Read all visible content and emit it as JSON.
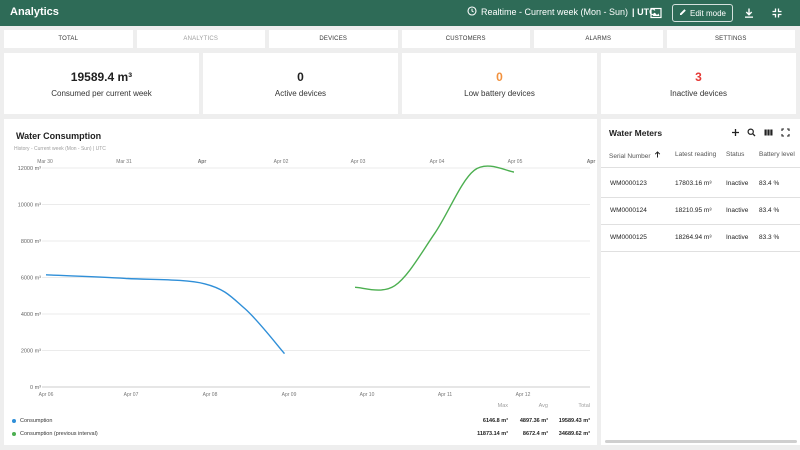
{
  "app": {
    "title": "Analytics"
  },
  "header": {
    "realtime_prefix": "Realtime - Current week (Mon - Sun)",
    "realtime_tz": "| UTC",
    "edit_label": "Edit mode",
    "icons": [
      "clock-icon",
      "image-icon",
      "pencil-icon",
      "download-icon",
      "fullscreen-exit-icon"
    ]
  },
  "tabs": [
    {
      "label": "TOTAL",
      "active": false
    },
    {
      "label": "ANALYTICS",
      "active": true
    },
    {
      "label": "DEVICES",
      "active": false
    },
    {
      "label": "CUSTOMERS",
      "active": false
    },
    {
      "label": "ALARMS",
      "active": false
    },
    {
      "label": "SETTINGS",
      "active": false
    }
  ],
  "cards": [
    {
      "value": "19589.4 m³",
      "label": "Consumed per current week",
      "color": "#212121"
    },
    {
      "value": "0",
      "label": "Active devices",
      "color": "#212121"
    },
    {
      "value": "0",
      "label": "Low battery devices",
      "color": "#f2913d"
    },
    {
      "value": "3",
      "label": "Inactive devices",
      "color": "#e53935"
    }
  ],
  "chart": {
    "title": "Water Consumption",
    "subtitle": "History - Current week (Mon - Sun) | UTC",
    "legend_headers": {
      "max": "Max",
      "avg": "Avg",
      "total": "Total"
    },
    "legend": [
      {
        "name": "Consumption",
        "color": "#2f8fd8",
        "max": "6146.8 m³",
        "avg": "4897.36 m³",
        "total": "19589.43 m³"
      },
      {
        "name": "Consumption (previous interval)",
        "color": "#4caf50",
        "max": "11873.14 m³",
        "avg": "8672.4 m³",
        "total": "34689.62 m³"
      }
    ]
  },
  "chart_data": {
    "type": "line",
    "title": "",
    "y_unit": "m³",
    "ylim": [
      0,
      12000
    ],
    "yticks": [
      0,
      2000,
      4000,
      6000,
      8000,
      10000,
      12000
    ],
    "ytick_labels": [
      "0 m³",
      "2000 m³",
      "4000 m³",
      "6000 m³",
      "8000 m³",
      "10000 m³",
      "12000 m³"
    ],
    "x_bottom_labels": [
      "Apr 06",
      "Apr 07",
      "Apr 08",
      "Apr 09",
      "Apr 10",
      "Apr 11",
      "Apr 12"
    ],
    "x_top_labels": [
      "Mar 30",
      "Mar 31",
      "Apr",
      "Apr 02",
      "Apr 03",
      "Apr 04",
      "Apr 05",
      "Apr"
    ],
    "grid": true,
    "series": [
      {
        "name": "Consumption",
        "color": "#2f8fd8",
        "x": [
          "Apr 06",
          "Apr 07",
          "Apr 08",
          "Apr 08 12:00",
          "Apr 09"
        ],
        "values": [
          6146.8,
          5950,
          5650,
          4300,
          1830
        ]
      },
      {
        "name": "Consumption (previous interval)",
        "color": "#4caf50",
        "x": [
          "Apr 03",
          "Apr 03 12:00",
          "Apr 04",
          "Apr 04 12:00",
          "Apr 05"
        ],
        "values": [
          5460,
          5550,
          8400,
          11873.14,
          11780
        ]
      }
    ]
  },
  "meters": {
    "title": "Water Meters",
    "icons": [
      "add-icon",
      "search-icon",
      "columns-icon",
      "fullscreen-icon"
    ],
    "columns": [
      "Serial Number",
      "Latest reading",
      "Status",
      "Battery level"
    ],
    "rows": [
      {
        "serial": "WM0000123",
        "reading": "17803.16 m³",
        "status": "Inactive",
        "battery": "83.4 %"
      },
      {
        "serial": "WM0000124",
        "reading": "18210.95 m³",
        "status": "Inactive",
        "battery": "83.4 %"
      },
      {
        "serial": "WM0000125",
        "reading": "18264.94 m³",
        "status": "Inactive",
        "battery": "83.3 %"
      }
    ]
  }
}
